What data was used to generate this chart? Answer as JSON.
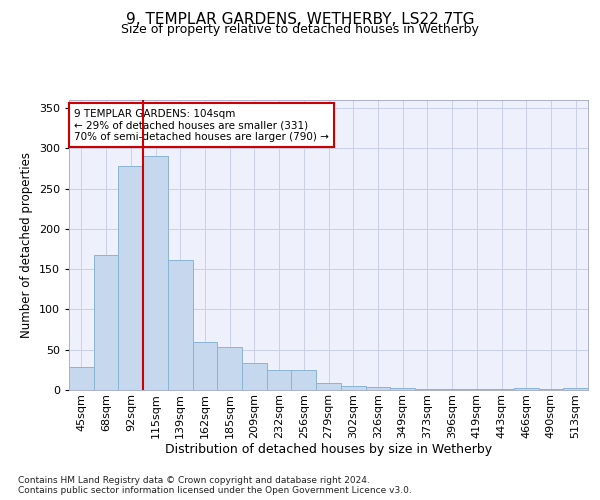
{
  "title": "9, TEMPLAR GARDENS, WETHERBY, LS22 7TG",
  "subtitle": "Size of property relative to detached houses in Wetherby",
  "xlabel": "Distribution of detached houses by size in Wetherby",
  "ylabel": "Number of detached properties",
  "categories": [
    "45sqm",
    "68sqm",
    "92sqm",
    "115sqm",
    "139sqm",
    "162sqm",
    "185sqm",
    "209sqm",
    "232sqm",
    "256sqm",
    "279sqm",
    "302sqm",
    "326sqm",
    "349sqm",
    "373sqm",
    "396sqm",
    "419sqm",
    "443sqm",
    "466sqm",
    "490sqm",
    "513sqm"
  ],
  "values": [
    28,
    168,
    278,
    290,
    162,
    60,
    53,
    33,
    25,
    25,
    9,
    5,
    4,
    2,
    1,
    1,
    1,
    1,
    3,
    1,
    3
  ],
  "bar_color": "#c5d8ee",
  "bar_edge_color": "#8ab4d4",
  "vline_x_index": 3,
  "vline_color": "#cc0000",
  "annotation_line1": "9 TEMPLAR GARDENS: 104sqm",
  "annotation_line2": "← 29% of detached houses are smaller (331)",
  "annotation_line3": "70% of semi-detached houses are larger (790) →",
  "annotation_box_color": "white",
  "annotation_box_edge": "#cc0000",
  "bg_color": "#eef1fb",
  "grid_color": "#c8cfe8",
  "footer": "Contains HM Land Registry data © Crown copyright and database right 2024.\nContains public sector information licensed under the Open Government Licence v3.0.",
  "ylim": [
    0,
    360
  ],
  "yticks": [
    0,
    50,
    100,
    150,
    200,
    250,
    300,
    350
  ],
  "title_fontsize": 11,
  "subtitle_fontsize": 9,
  "ylabel_fontsize": 8.5,
  "xlabel_fontsize": 9,
  "tick_fontsize": 8,
  "footer_fontsize": 6.5
}
